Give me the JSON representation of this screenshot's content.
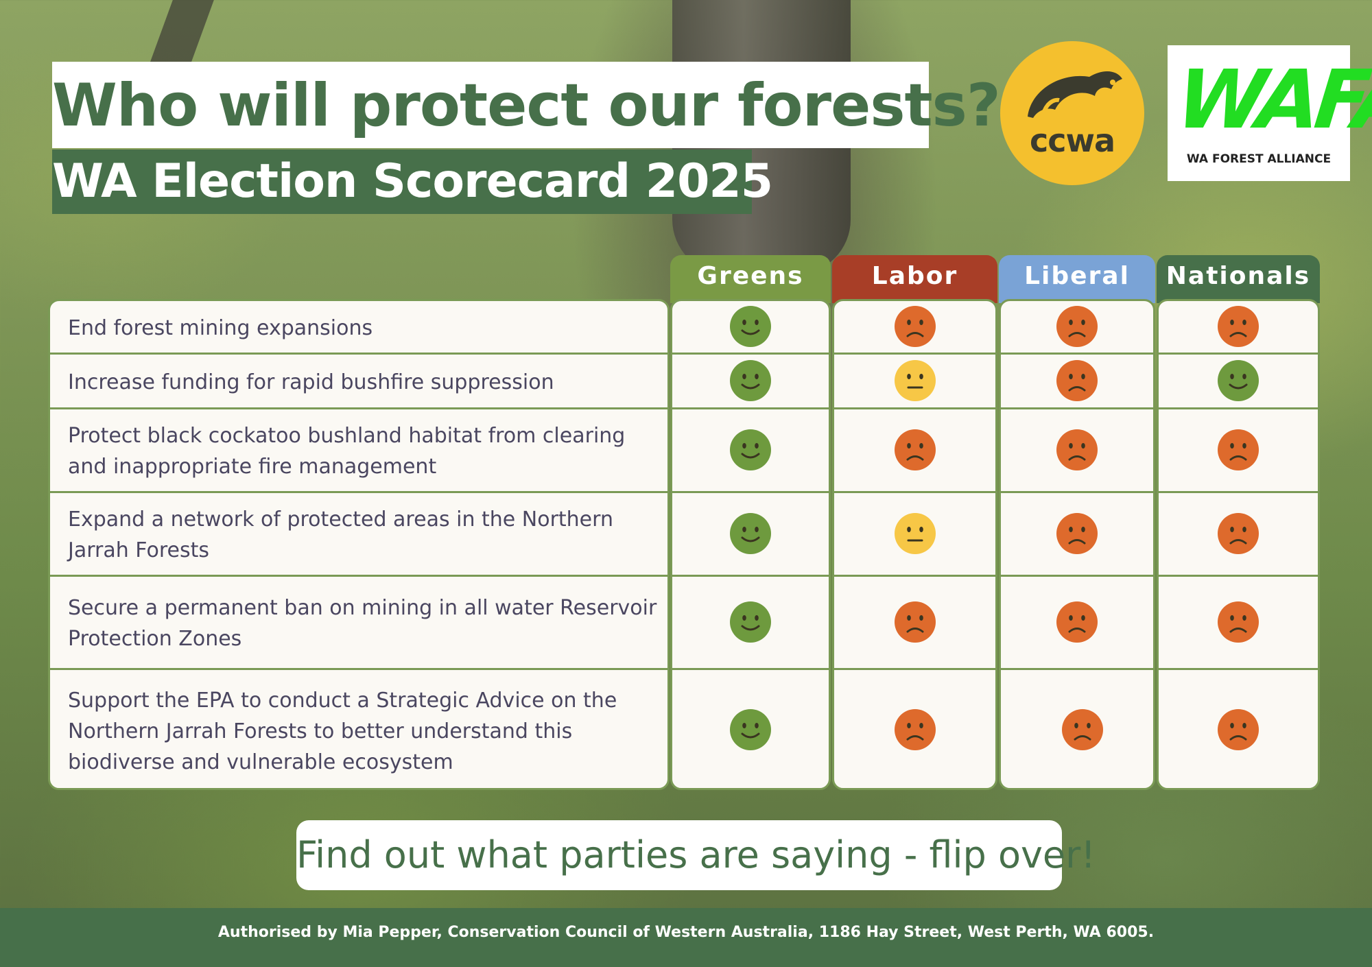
{
  "header": {
    "title": "Who will protect our forests?",
    "subtitle": "WA Election Scorecard 2025"
  },
  "logos": {
    "ccwa": {
      "text": "ccwa",
      "color": "#f4c02e"
    },
    "wafa": {
      "mark": "WAFA",
      "caption": "WA FOREST ALLIANCE",
      "color": "#22dd22"
    }
  },
  "parties": [
    {
      "label": "Greens",
      "color": "#7a9a45"
    },
    {
      "label": "Labor",
      "color": "#a83e27"
    },
    {
      "label": "Liberal",
      "color": "#7aa3d6"
    },
    {
      "label": "Nationals",
      "color": "#47704a"
    }
  ],
  "rating_legend": {
    "happy": {
      "icon": "happy-face-icon",
      "color": "#6e9a3e"
    },
    "neutral": {
      "icon": "neutral-face-icon",
      "color": "#f7c746"
    },
    "sad": {
      "icon": "sad-face-icon",
      "color": "#de6a2c"
    }
  },
  "issues": [
    {
      "text": "End forest mining expansions",
      "ratings": [
        "happy",
        "sad",
        "sad",
        "sad"
      ]
    },
    {
      "text": "Increase funding for rapid bushfire suppression",
      "ratings": [
        "happy",
        "neutral",
        "sad",
        "happy"
      ]
    },
    {
      "text": "Protect black cockatoo bushland habitat from clearing and inappropriate fire management",
      "ratings": [
        "happy",
        "sad",
        "sad",
        "sad"
      ]
    },
    {
      "text": "Expand a network of protected areas in the Northern Jarrah Forests",
      "ratings": [
        "happy",
        "neutral",
        "sad",
        "sad"
      ]
    },
    {
      "text": "Secure a permanent ban on mining in all water Reservoir Protection Zones",
      "ratings": [
        "happy",
        "sad",
        "sad",
        "sad"
      ]
    },
    {
      "text": "Support the EPA to conduct a Strategic Advice on the Northern Jarrah Forests to better understand this biodiverse and vulnerable ecosystem",
      "ratings": [
        "happy",
        "sad",
        "sad",
        "sad"
      ]
    }
  ],
  "cta": "Find out what parties are saying - flip over!",
  "footer": "Authorised by Mia Pepper, Conservation Council of Western Australia, 1186 Hay Street, West Perth, WA 6005."
}
